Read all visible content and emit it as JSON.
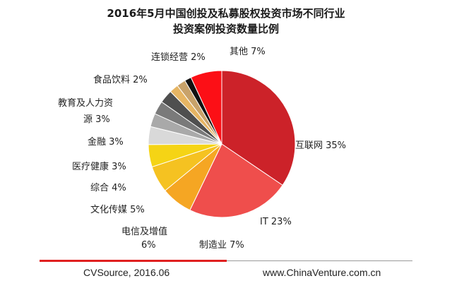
{
  "title_line1": "2016年5月中国创投及私募股权投资市场不同行业",
  "title_line2": "投资案例投资数量比例",
  "footer": {
    "source": "CVSource, 2016.06",
    "website": "www.ChinaVenture.com.cn"
  },
  "chart_data": {
    "type": "pie",
    "title": "2016年5月中国创投及私募股权投资市场不同行业投资案例投资数量比例",
    "slices": [
      {
        "label": "互联网 35%",
        "value": 35,
        "color": "#cc2229"
      },
      {
        "label": "IT 23%",
        "value": 23,
        "color": "#ef4e4c"
      },
      {
        "label": "制造业 7%",
        "value": 7,
        "color": "#f5a623"
      },
      {
        "label": "电信及增值 6%",
        "value": 6,
        "color": "#f5c221"
      },
      {
        "label": "文化传媒 5%",
        "value": 5,
        "color": "#f8dc1c"
      },
      {
        "label": "综合 4%",
        "value": 4,
        "color": "#f5e85a"
      },
      {
        "label": "医疗健康 3%",
        "value": 3,
        "color": "#d6d6d6"
      },
      {
        "label": "金融 3%",
        "value": 3,
        "color": "#a9a9a9"
      },
      {
        "label": "教育及人力资源 3%",
        "value": 3,
        "color": "#7e7e7e"
      },
      {
        "label": "食品饮料 2%",
        "value": 2,
        "color": "#4f4f4f"
      },
      {
        "label": "连锁经营 2%",
        "value": 2,
        "color": "#e6b563"
      },
      {
        "label": "其他 7%",
        "value": 7,
        "color": "#fc0f16"
      }
    ],
    "display_slices": [
      {
        "value": 35,
        "color": "#cc2229"
      },
      {
        "value": 23,
        "color": "#ef4e4c"
      },
      {
        "value": 7,
        "color": "#f5a623"
      },
      {
        "value": 6,
        "color": "#f5c221"
      },
      {
        "value": 5,
        "color": "#f5d415"
      },
      {
        "value": 4,
        "color": "#d9d9d9"
      },
      {
        "value": 3,
        "color": "#a9a9a9"
      },
      {
        "value": 3,
        "color": "#7a7a7a"
      },
      {
        "value": 3,
        "color": "#4f4f4f"
      },
      {
        "value": 2,
        "color": "#e6b563"
      },
      {
        "value": 2,
        "color": "#c8a26a"
      },
      {
        "value": 1.5,
        "color": "#111111"
      },
      {
        "value": 7,
        "color": "#fc0f16"
      }
    ],
    "labels": {
      "internet": "互联网 35%",
      "it": "IT 23%",
      "manufacturing": "制造业 7%",
      "telecom_line1": "电信及增值",
      "telecom_line2": "6%",
      "media": "文化传媒 5%",
      "comprehensive": "综合 4%",
      "healthcare": "医疗健康 3%",
      "finance": "金融 3%",
      "education_line1": "教育及人力资",
      "education_line2": "源 3%",
      "food": "食品饮料 2%",
      "chain": "连锁经营 2%",
      "other": "其他 7%"
    }
  }
}
